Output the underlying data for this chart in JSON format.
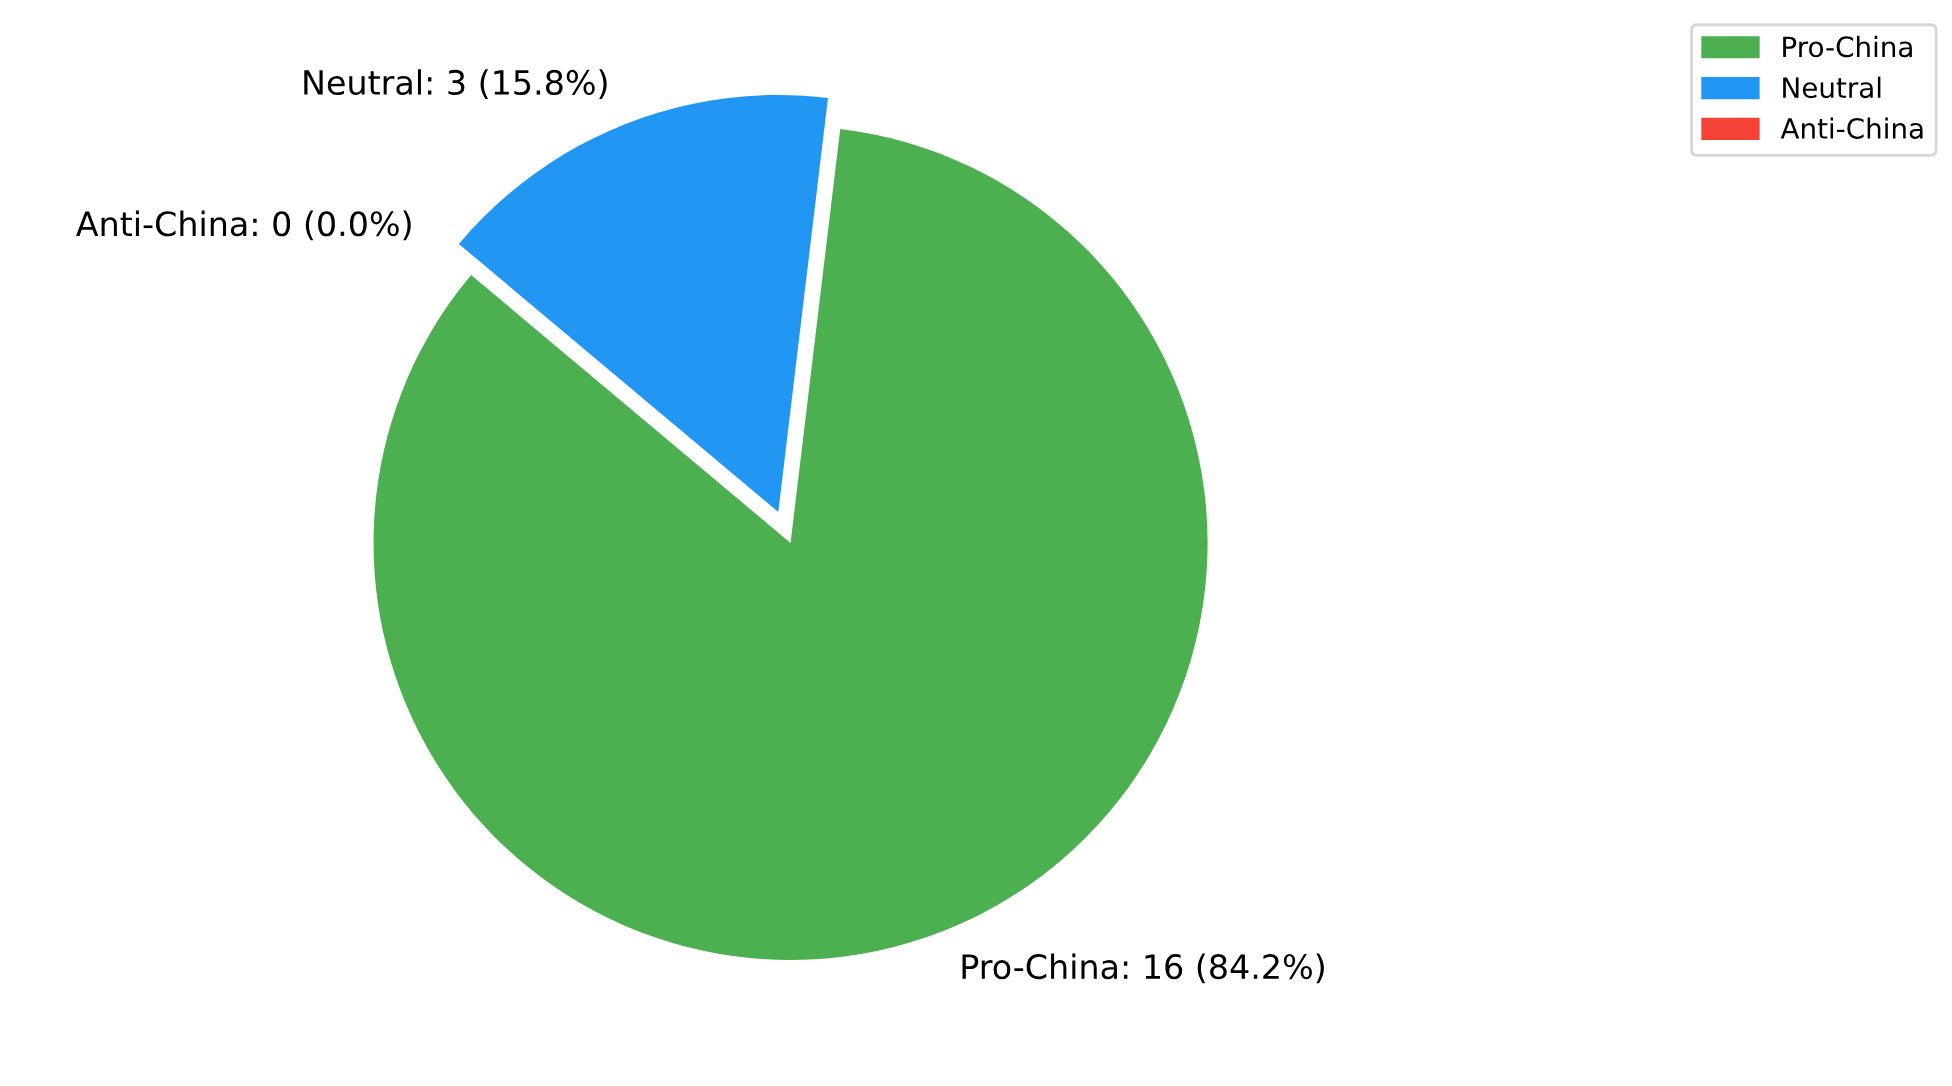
{
  "chart_data": {
    "type": "pie",
    "categories": [
      "Pro-China",
      "Neutral",
      "Anti-China"
    ],
    "values": [
      16,
      3,
      0
    ],
    "colors": [
      "#4caf50",
      "#2196f3",
      "#f44336"
    ],
    "value_labels": [
      "Pro-China: 16 (84.2%)",
      "Neutral: 3 (15.8%)",
      "Anti-China: 0 (0.0%)"
    ],
    "legend": "top right"
  }
}
